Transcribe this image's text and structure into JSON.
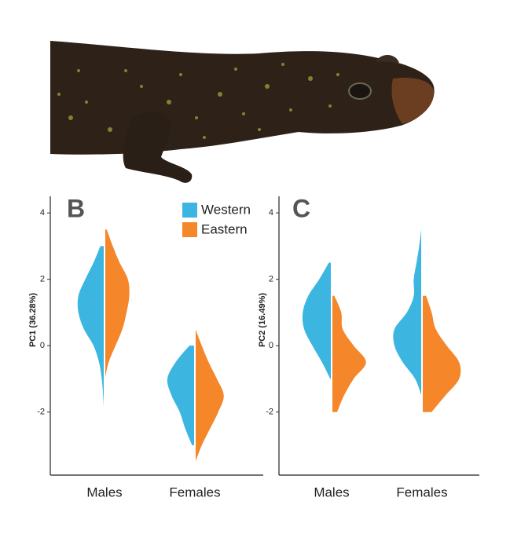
{
  "chart_data": [
    {
      "type": "violin",
      "panel_label": "B",
      "ylabel": "PC1 (36.28%)",
      "categories": [
        "Males",
        "Females"
      ],
      "ylim": [
        -3.9,
        4.5
      ],
      "yticks": [
        -2,
        0,
        2,
        4
      ],
      "y_grid": [
        -3.5,
        -3,
        -2.5,
        -2,
        -1.5,
        -1,
        -0.5,
        0,
        0.5,
        1,
        1.5,
        2,
        2.5,
        3,
        3.5,
        4
      ],
      "legend": true,
      "series": [
        {
          "name": "Western",
          "color": "#3cb6e0",
          "side": "left",
          "values": [
            [
              null,
              null,
              null,
              0.02,
              0.05,
              0.1,
              0.2,
              0.4,
              0.75,
              0.95,
              0.95,
              0.7,
              0.4,
              0.15,
              null,
              null
            ],
            [
              null,
              0.1,
              0.35,
              0.55,
              0.85,
              1.0,
              0.7,
              0.2,
              null,
              null,
              null,
              null,
              null,
              null,
              null,
              null
            ]
          ]
        },
        {
          "name": "Eastern",
          "color": "#f5862a",
          "side": "right",
          "values": [
            [
              null,
              null,
              null,
              null,
              null,
              0.02,
              0.15,
              0.4,
              0.65,
              0.8,
              0.9,
              0.85,
              0.55,
              0.3,
              0.08,
              null
            ],
            [
              0.02,
              0.25,
              0.55,
              0.85,
              1.05,
              0.8,
              0.5,
              0.25,
              0.02,
              null,
              null,
              null,
              null,
              null,
              null,
              null
            ]
          ]
        }
      ]
    },
    {
      "type": "violin",
      "panel_label": "C",
      "ylabel": "PC2 (16.49%)",
      "categories": [
        "Males",
        "Females"
      ],
      "ylim": [
        -3.9,
        4.5
      ],
      "yticks": [
        -2,
        0,
        2,
        4
      ],
      "y_grid": [
        -3.5,
        -3,
        -2.5,
        -2,
        -1.5,
        -1,
        -0.5,
        0,
        0.5,
        1,
        1.5,
        2,
        2.5,
        3,
        3.5,
        4
      ],
      "legend": false,
      "series": [
        {
          "name": "Western",
          "color": "#3cb6e0",
          "side": "left",
          "values": [
            [
              null,
              null,
              null,
              null,
              null,
              0.05,
              0.35,
              0.7,
              1.0,
              1.05,
              0.85,
              0.45,
              0.1,
              null,
              null,
              null
            ],
            [
              null,
              null,
              null,
              null,
              0.02,
              0.25,
              0.7,
              1.0,
              1.0,
              0.55,
              0.3,
              0.3,
              0.2,
              0.1,
              0.03,
              null
            ]
          ]
        },
        {
          "name": "Eastern",
          "color": "#f5862a",
          "side": "right",
          "values": [
            [
              null,
              null,
              null,
              0.2,
              0.45,
              0.8,
              1.25,
              0.8,
              0.4,
              0.35,
              0.1,
              null,
              null,
              null,
              null,
              null
            ],
            [
              null,
              null,
              null,
              0.35,
              0.85,
              1.35,
              1.35,
              0.9,
              0.5,
              0.35,
              0.15,
              null,
              null,
              null,
              null,
              null
            ]
          ]
        }
      ]
    }
  ]
}
